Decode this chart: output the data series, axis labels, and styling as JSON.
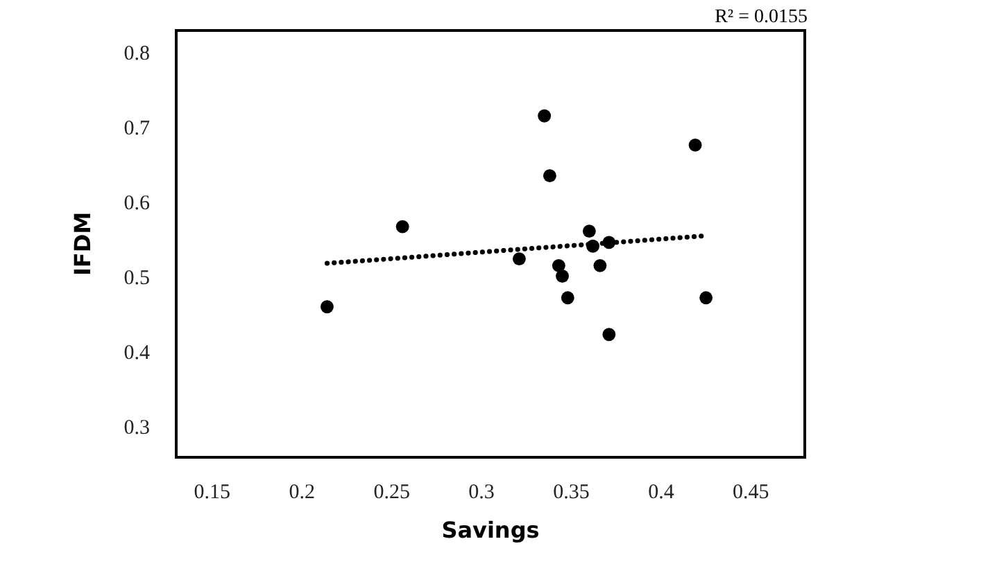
{
  "chart_data": {
    "type": "scatter",
    "xlabel": "Savings",
    "ylabel": "IFDM",
    "annotations": [
      "R² = 0.0155"
    ],
    "xlim": [
      0.13,
      0.48
    ],
    "ylim": [
      0.26,
      0.83
    ],
    "xticks": [
      0.15,
      0.2,
      0.25,
      0.3,
      0.35,
      0.4,
      0.45
    ],
    "yticks": [
      0.3,
      0.4,
      0.5,
      0.6,
      0.7,
      0.8
    ],
    "grid": false,
    "marker": "circle",
    "series": [
      {
        "color": "#000000",
        "x": [
          0.214,
          0.256,
          0.321,
          0.335,
          0.338,
          0.343,
          0.345,
          0.348,
          0.36,
          0.362,
          0.366,
          0.371,
          0.371,
          0.419,
          0.425
        ],
        "values": [
          0.461,
          0.568,
          0.525,
          0.716,
          0.636,
          0.516,
          0.502,
          0.473,
          0.562,
          0.542,
          0.516,
          0.547,
          0.424,
          0.677,
          0.473
        ]
      },
      {
        "type": "line",
        "color": "#000000",
        "line_style": "dotted",
        "marker": "none",
        "x": [
          0.214,
          0.426
        ],
        "values": [
          0.519,
          0.556
        ]
      }
    ]
  }
}
